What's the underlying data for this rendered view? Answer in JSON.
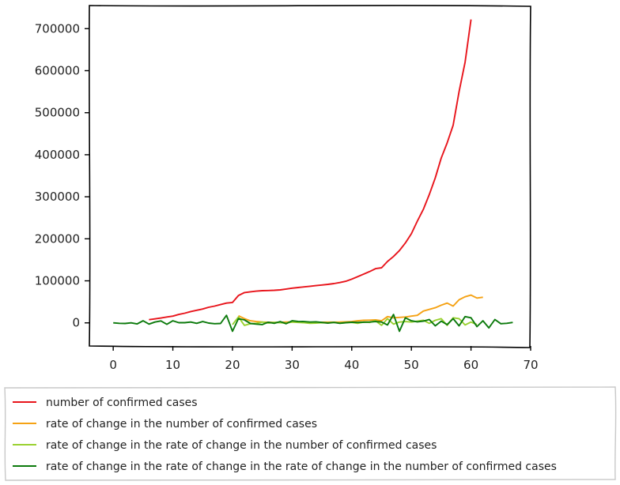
{
  "chart_data": {
    "type": "line",
    "xlim": [
      -4,
      70
    ],
    "ylim": [
      -55000,
      755000
    ],
    "x_ticks": [
      "0",
      "10",
      "20",
      "30",
      "40",
      "50",
      "60",
      "70"
    ],
    "x_tick_values": [
      0,
      10,
      20,
      30,
      40,
      50,
      60,
      70
    ],
    "y_ticks": [
      "0",
      "100000",
      "200000",
      "300000",
      "400000",
      "500000",
      "600000",
      "700000"
    ],
    "y_tick_values": [
      0,
      100000,
      200000,
      300000,
      400000,
      500000,
      600000,
      700000
    ],
    "grid": false,
    "legend_position": "bottom",
    "series": [
      {
        "name": "number of confirmed cases",
        "color": "#e8141b",
        "x_start": 6,
        "values": [
          7500,
          9500,
          11500,
          14000,
          16000,
          20000,
          23000,
          27000,
          30000,
          33000,
          37000,
          40000,
          43500,
          47000,
          48500,
          65000,
          72000,
          74000,
          75500,
          76500,
          77000,
          77500,
          78500,
          80500,
          82500,
          84000,
          85500,
          87000,
          88500,
          90000,
          91500,
          93500,
          96000,
          99000,
          104000,
          110000,
          116000,
          122000,
          129000,
          131000,
          146000,
          158000,
          172000,
          190000,
          212000,
          242000,
          270000,
          305000,
          345000,
          392000,
          428000,
          470000,
          550000,
          620000,
          722000
        ]
      },
      {
        "name": "rate of change in the number of confirmed cases",
        "color": "#f5a214",
        "x_start": 21,
        "values": [
          17000,
          10000,
          5000,
          3000,
          2000,
          1500,
          1000,
          1500,
          2000,
          2200,
          2000,
          1800,
          1600,
          1500,
          1600,
          1700,
          1800,
          2000,
          2500,
          3000,
          5000,
          6000,
          6500,
          7000,
          5000,
          15000,
          12000,
          13000,
          14000,
          16000,
          18000,
          28000,
          32000,
          36000,
          42000,
          47000,
          40000,
          55000,
          62000,
          66000,
          59000,
          61000
        ]
      },
      {
        "name": "rate of change in the rate of change in the number of confirmed cases",
        "color": "#9ad130",
        "x_start": 20,
        "values": [
          -4000,
          14000,
          -6000,
          -2000,
          -1000,
          2000,
          -500,
          1000,
          500,
          -500,
          2000,
          1000,
          500,
          -1000,
          -500,
          500,
          0,
          1000,
          -500,
          500,
          1000,
          -1000,
          2000,
          1000,
          5000,
          -6000,
          10000,
          -3000,
          2000,
          3000,
          2000,
          4000,
          6000,
          -1000,
          6000,
          10000,
          -6000,
          12000,
          10000,
          -5000,
          2000,
          -4000
        ]
      },
      {
        "name": "rate of change in the rate of change in the rate of change in the number of confirmed cases",
        "color": "#0c7a0c",
        "x_start": 0,
        "values": [
          0,
          -1000,
          -1500,
          0,
          -2500,
          5000,
          -3000,
          2000,
          4500,
          -3500,
          5000,
          500,
          500,
          2000,
          -1000,
          3000,
          -500,
          -2000,
          -1500,
          18000,
          -20000,
          10000,
          7000,
          -1500,
          -3000,
          -4000,
          1500,
          -1000,
          3000,
          -2000,
          5000,
          3500,
          3000,
          2000,
          2500,
          1000,
          -500,
          1000,
          -1000,
          500,
          1500,
          1000,
          1500,
          2000,
          3000,
          2000,
          -5000,
          20000,
          -20000,
          12000,
          5000,
          2500,
          4000,
          8000,
          -7000,
          4000,
          -4000,
          10000,
          -7000,
          15000,
          12000,
          -9000,
          5000,
          -12000,
          8000,
          -2000,
          -1000,
          1000
        ]
      }
    ]
  }
}
